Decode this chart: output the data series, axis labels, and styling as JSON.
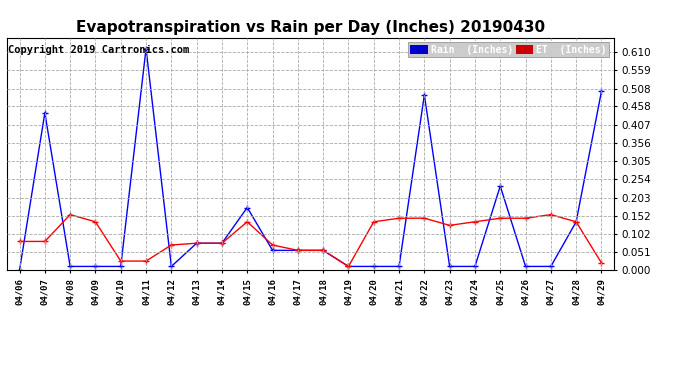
{
  "title": "Evapotranspiration vs Rain per Day (Inches) 20190430",
  "copyright": "Copyright 2019 Cartronics.com",
  "x_labels": [
    "04/06",
    "04/07",
    "04/08",
    "04/09",
    "04/10",
    "04/11",
    "04/12",
    "04/13",
    "04/14",
    "04/15",
    "04/16",
    "04/17",
    "04/18",
    "04/19",
    "04/20",
    "04/21",
    "04/22",
    "04/23",
    "04/24",
    "04/25",
    "04/26",
    "04/27",
    "04/28",
    "04/29"
  ],
  "rain_values": [
    0.0,
    0.44,
    0.01,
    0.01,
    0.01,
    0.62,
    0.01,
    0.075,
    0.075,
    0.175,
    0.055,
    0.055,
    0.055,
    0.01,
    0.01,
    0.01,
    0.49,
    0.01,
    0.01,
    0.235,
    0.01,
    0.01,
    0.135,
    0.5
  ],
  "et_values": [
    0.08,
    0.08,
    0.155,
    0.135,
    0.025,
    0.025,
    0.07,
    0.075,
    0.075,
    0.135,
    0.07,
    0.055,
    0.055,
    0.01,
    0.135,
    0.145,
    0.145,
    0.125,
    0.135,
    0.145,
    0.145,
    0.155,
    0.135,
    0.02
  ],
  "rain_color": "#0000ff",
  "et_color": "#ff0000",
  "ylim": [
    0.0,
    0.651
  ],
  "yticks": [
    0.0,
    0.051,
    0.102,
    0.152,
    0.203,
    0.254,
    0.305,
    0.356,
    0.407,
    0.458,
    0.508,
    0.559,
    0.61
  ],
  "background_color": "#ffffff",
  "plot_bg_color": "#ffffff",
  "legend_rain_bg": "#0000cc",
  "legend_et_bg": "#cc0000",
  "title_fontsize": 11,
  "copyright_fontsize": 7.5
}
